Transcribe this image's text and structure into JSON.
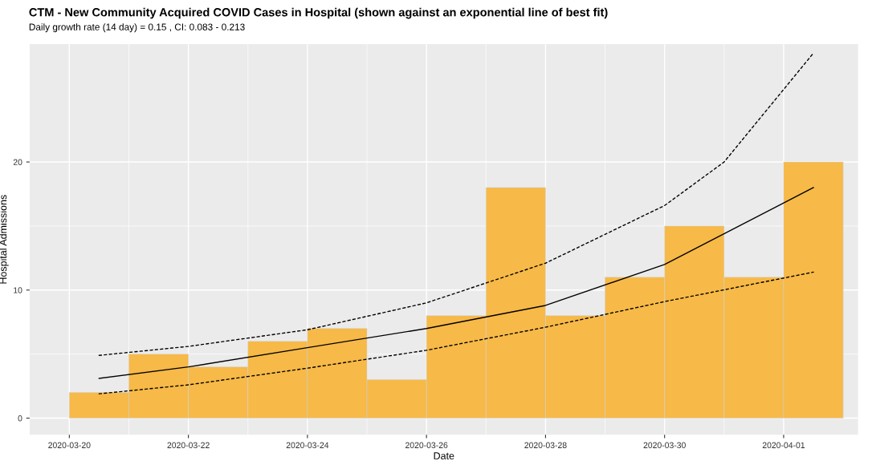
{
  "chart_data": {
    "type": "histogram",
    "title": "CTM - New Community Acquired COVID Cases in Hospital (shown against an exponential line of best fit)",
    "subtitle": "Daily growth rate (14 day) = 0.15 , CI: 0.083 - 0.213",
    "xlabel": "Date",
    "ylabel": "Hospital Admissions",
    "bins": [
      "2020-03-20",
      "2020-03-21",
      "2020-03-22",
      "2020-03-23",
      "2020-03-24",
      "2020-03-25",
      "2020-03-26",
      "2020-03-27",
      "2020-03-28",
      "2020-03-29",
      "2020-03-30",
      "2020-03-31",
      "2020-04-01",
      "2020-04-02"
    ],
    "values": [
      2,
      5,
      4,
      6,
      7,
      3,
      8,
      18,
      8,
      11,
      15,
      11,
      20
    ],
    "color": "#f7b947",
    "series": [
      {
        "type": "line",
        "line_style": "solid",
        "color": "#000000",
        "x": [
          "2020-03-20T12:00",
          "2020-03-22",
          "2020-03-24",
          "2020-03-26",
          "2020-03-28",
          "2020-03-30",
          "2020-04-01T12:00"
        ],
        "values": [
          3.1,
          4.0,
          5.5,
          7.0,
          8.8,
          12.0,
          18.0
        ]
      },
      {
        "type": "line",
        "line_style": "dashed",
        "color": "#000000",
        "x": [
          "2020-03-20T12:00",
          "2020-03-22",
          "2020-03-24",
          "2020-03-26",
          "2020-03-28",
          "2020-03-30",
          "2020-03-31",
          "2020-04-01T12:00"
        ],
        "values": [
          4.9,
          5.6,
          6.9,
          9.0,
          12.1,
          16.6,
          20.0,
          28.5
        ]
      },
      {
        "type": "line",
        "line_style": "dashed",
        "color": "#000000",
        "x": [
          "2020-03-20T12:00",
          "2020-03-22",
          "2020-03-24",
          "2020-03-26",
          "2020-03-28",
          "2020-03-30",
          "2020-04-01T12:00"
        ],
        "values": [
          1.9,
          2.6,
          3.9,
          5.3,
          7.1,
          9.1,
          11.4
        ]
      }
    ],
    "xlim": [
      "2020-03-19T08:00",
      "2020-04-02T06:00"
    ],
    "xticks": [
      "2020-03-20",
      "2020-03-22",
      "2020-03-24",
      "2020-03-26",
      "2020-03-28",
      "2020-03-30",
      "2020-04-01"
    ],
    "ylim": [
      -1.3,
      29.2
    ],
    "yticks": [
      0,
      10,
      20
    ],
    "grid": true
  }
}
